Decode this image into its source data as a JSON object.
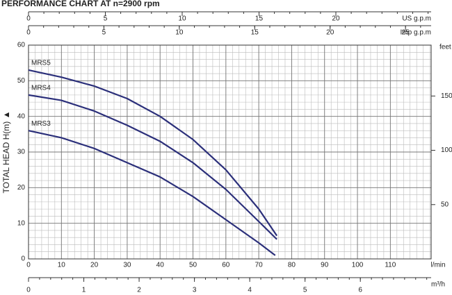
{
  "chart_data": {
    "type": "line",
    "title": "PERFORMANCE CHART AT n=2900 rpm",
    "y_label": "TOTAL HEAD H(m) ▲",
    "x_label": "l/min",
    "xlim": [
      0,
      122.4
    ],
    "xticks": [
      0,
      10,
      20,
      30,
      40,
      50,
      60,
      70,
      80,
      90,
      100,
      110
    ],
    "ylim": [
      0,
      60
    ],
    "yticks": [
      0,
      10,
      20,
      30,
      40,
      50,
      60
    ],
    "grid": true,
    "minor_grid": true,
    "y2_label": "feet",
    "y2lim": [
      0,
      196.85
    ],
    "y2ticks": [
      50,
      100,
      150
    ],
    "top_axes": [
      {
        "label": "US g.p.m",
        "xlim": [
          0,
          26.2
        ],
        "xticks": [
          0,
          5,
          10,
          15,
          20
        ]
      },
      {
        "label": "Imp g.p.m",
        "xlim": [
          0,
          26.7
        ],
        "xticks": [
          0,
          5,
          10,
          15,
          20,
          25
        ]
      }
    ],
    "bottom_axis": {
      "label": "m³/h",
      "xlim": [
        0,
        7.28
      ],
      "xticks": [
        0,
        1,
        2,
        3,
        4,
        5,
        6
      ]
    },
    "series": [
      {
        "name": "MRS5",
        "color": "#2b2f7a",
        "x": [
          0,
          10,
          20,
          30,
          40,
          50,
          60,
          70,
          75.5
        ],
        "values": [
          53,
          51,
          48.5,
          45,
          40,
          33.5,
          25,
          14,
          6.5
        ]
      },
      {
        "name": "MRS4",
        "color": "#2b2f7a",
        "x": [
          0,
          10,
          20,
          30,
          40,
          50,
          60,
          70,
          75.5
        ],
        "values": [
          46,
          44.5,
          41.5,
          37.5,
          33,
          27,
          19.5,
          10.5,
          5.5
        ]
      },
      {
        "name": "MRS3",
        "color": "#2b2f7a",
        "x": [
          0,
          10,
          20,
          30,
          40,
          50,
          60,
          70,
          75
        ],
        "values": [
          36,
          34,
          31,
          27,
          23,
          17.5,
          11,
          4.5,
          1
        ]
      }
    ]
  }
}
